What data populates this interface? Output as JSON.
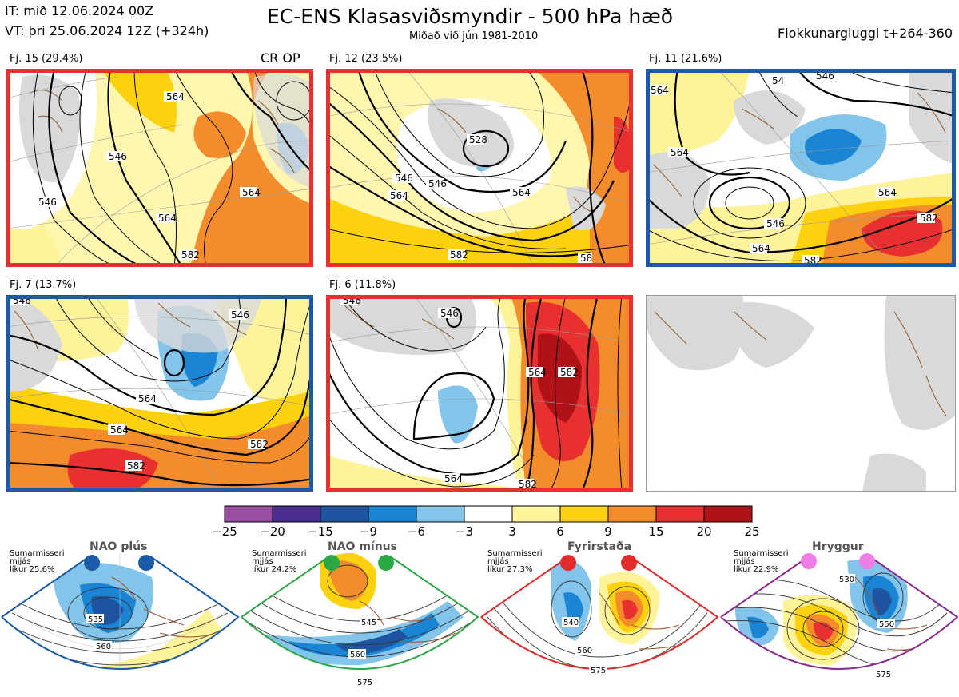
{
  "header": {
    "it_line": "IT: mið 12.06.2024 00Z",
    "vt_line": "VT: þri 25.06.2024 12Z  (+324h)",
    "title": "EC-ENS Klasasviðsmyndir - 500 hPa hæð",
    "subtitle": "Miðað við jún 1981-2010",
    "window": "Flokkunargluggi t+264-360"
  },
  "panels": [
    {
      "label": "Fj. 15 (29.4%)",
      "tag": "CR OP",
      "border": "#e83030",
      "contours": [
        "546",
        "546",
        "564",
        "564",
        "564",
        "582"
      ]
    },
    {
      "label": "Fj. 12 (23.5%)",
      "tag": "",
      "border": "#e83030",
      "contours": [
        "546",
        "528",
        "546",
        "564",
        "564",
        "582",
        "58"
      ]
    },
    {
      "label": "Fj. 11 (21.6%)",
      "tag": "",
      "border": "#1a5aa6",
      "contours": [
        "564",
        "54",
        "546",
        "564",
        "546",
        "564",
        "564",
        "582",
        "582"
      ]
    },
    {
      "label": "Fj. 7 (13.7%)",
      "tag": "",
      "border": "#1a5aa6",
      "contours": [
        "546",
        "546",
        "564",
        "564",
        "582",
        "582"
      ]
    },
    {
      "label": "Fj. 6 (11.8%)",
      "tag": "",
      "border": "#e83030",
      "contours": [
        "546",
        "546",
        "564",
        "582",
        "564",
        "582"
      ]
    }
  ],
  "colorbar": {
    "ticks": [
      "−25",
      "−20",
      "−15",
      "−9",
      "−6",
      "−3",
      "3",
      "6",
      "9",
      "15",
      "20",
      "25"
    ],
    "colors": [
      "#9b4fa0",
      "#4a2d91",
      "#1f55a0",
      "#1a85d4",
      "#82c4ea",
      "#ffffff",
      "#fff39a",
      "#fcd20f",
      "#f48c2c",
      "#e83030",
      "#b01218"
    ]
  },
  "regimes": [
    {
      "name": "NAO plús",
      "info": [
        "Sumarmisseri",
        "mjjás",
        "líkur 25,6%"
      ],
      "color": "#1a5aa6",
      "contours": [
        "535",
        "560"
      ]
    },
    {
      "name": "NAO mínus",
      "info": [
        "Sumarmisseri",
        "mjjás",
        "líkur 24,2%"
      ],
      "color": "#2aa844",
      "contours": [
        "545",
        "560",
        "575"
      ]
    },
    {
      "name": "Fyrirstaða",
      "info": [
        "Sumarmisseri",
        "mjjás",
        "líkur 27,3%"
      ],
      "color": "#e32b2b",
      "contours": [
        "540",
        "560",
        "575"
      ]
    },
    {
      "name": "Hryggur",
      "info": [
        "Sumarmisseri",
        "mjjás",
        "líkur 22,9%"
      ],
      "color": "#8a2a8f",
      "contours": [
        "530",
        "550",
        "575"
      ]
    }
  ],
  "icons": {
    "regime_marker": "circle-marker-icon"
  }
}
